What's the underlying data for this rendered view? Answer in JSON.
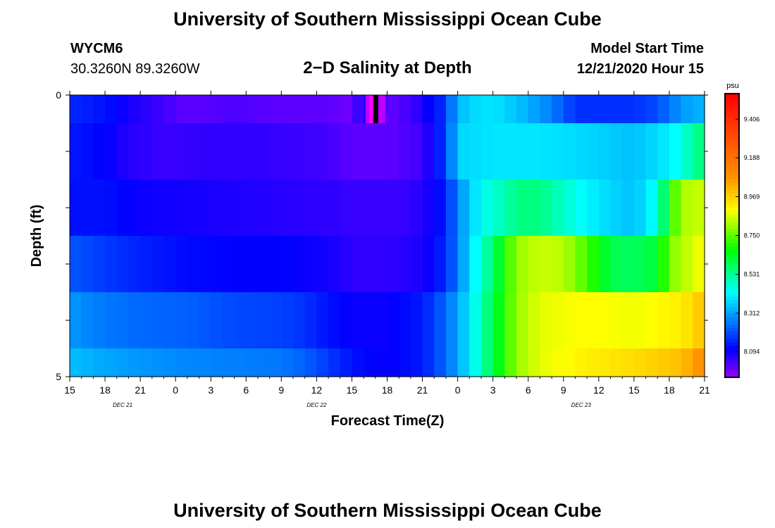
{
  "header": {
    "title": "University of Southern Mississippi Ocean Cube",
    "station": "WYCM6",
    "location": "30.3260N 89.3260W",
    "subtitle": "2−D Salinity at Depth",
    "model_start_label": "Model Start Time",
    "model_start_value": "12/21/2020 Hour 15"
  },
  "footer": {
    "title": "University of Southern Mississippi Ocean Cube"
  },
  "chart_data": {
    "type": "heatmap",
    "xlabel": "Forecast Time(Z)",
    "ylabel": "Depth (ft)",
    "x_ticks": [
      "15",
      "18",
      "21",
      "0",
      "3",
      "6",
      "9",
      "12",
      "15",
      "18",
      "21",
      "0",
      "3",
      "6",
      "9",
      "12",
      "15",
      "18",
      "21"
    ],
    "date_labels": [
      {
        "label": "DEC 21",
        "tick_index": 1.5
      },
      {
        "label": "DEC 22",
        "tick_index": 7
      },
      {
        "label": "DEC 23",
        "tick_index": 14.5
      }
    ],
    "y_ticks": [
      "0",
      "5"
    ],
    "ylim": [
      0,
      5
    ],
    "x_hours_from_start": [
      0,
      54
    ],
    "depth_rows_ft": [
      0.25,
      1.0,
      2.0,
      3.0,
      4.0,
      4.75
    ],
    "row_bounds_ft": [
      0,
      0.5,
      1.5,
      2.5,
      3.5,
      4.5,
      5
    ],
    "colorbar": {
      "unit": "psu",
      "min": 7.95,
      "max": 9.55,
      "ticks": [
        "9.406",
        "9.188",
        "8.969",
        "8.750",
        "8.531",
        "8.312",
        "8.094"
      ],
      "tick_values": [
        9.406,
        9.188,
        8.969,
        8.75,
        8.531,
        8.312,
        8.094
      ]
    },
    "now_marker_hour": 26.0,
    "series": [
      {
        "x": [
          0,
          3,
          5,
          8,
          10,
          14,
          18,
          22,
          24,
          25,
          26,
          27,
          29,
          30,
          31.5,
          32.5,
          33,
          34,
          36,
          39,
          41,
          43,
          45,
          46,
          48,
          50,
          51,
          53,
          54
        ],
        "values": [
          8.16,
          8.13,
          8.09,
          8.04,
          8.01,
          8.03,
          8.01,
          8.01,
          7.99,
          8.1,
          8.05,
          8.0,
          8.04,
          8.08,
          8.15,
          8.26,
          8.33,
          8.38,
          8.4,
          8.33,
          8.27,
          8.17,
          8.17,
          8.17,
          8.17,
          8.2,
          8.26,
          8.33,
          8.33
        ]
      },
      {
        "x": [
          0,
          3,
          5,
          8,
          12,
          16,
          22,
          24,
          27,
          30,
          31.5,
          32.5,
          33,
          36,
          40,
          44,
          48,
          51,
          52,
          53,
          54
        ],
        "values": [
          8.14,
          8.11,
          8.07,
          8.05,
          8.06,
          8.06,
          8.04,
          8.01,
          8.01,
          8.04,
          8.15,
          8.28,
          8.38,
          8.4,
          8.4,
          8.38,
          8.35,
          8.41,
          8.45,
          8.52,
          8.57
        ]
      },
      {
        "x": [
          0,
          3,
          6,
          10,
          14,
          18,
          22,
          25,
          28,
          30,
          32,
          33,
          35,
          37,
          38,
          40,
          42,
          44,
          46,
          48,
          50,
          51,
          52,
          54
        ],
        "values": [
          8.13,
          8.13,
          8.1,
          8.09,
          8.08,
          8.07,
          8.06,
          8.05,
          8.05,
          8.07,
          8.14,
          8.28,
          8.44,
          8.5,
          8.55,
          8.55,
          8.48,
          8.42,
          8.38,
          8.35,
          8.45,
          8.68,
          8.82,
          8.85
        ]
      },
      {
        "x": [
          0,
          3,
          6,
          10,
          14,
          18,
          22,
          24,
          27,
          30,
          32,
          34,
          36,
          38,
          40,
          42,
          44,
          46,
          48,
          50,
          51,
          54
        ],
        "values": [
          8.22,
          8.18,
          8.15,
          8.12,
          8.11,
          8.11,
          8.09,
          8.06,
          8.06,
          8.08,
          8.16,
          8.38,
          8.57,
          8.8,
          8.85,
          8.83,
          8.73,
          8.6,
          8.58,
          8.62,
          8.78,
          8.9
        ]
      },
      {
        "x": [
          0,
          3,
          6,
          10,
          14,
          18,
          20,
          22,
          24,
          27,
          30,
          32,
          34,
          36,
          38,
          40,
          44,
          48,
          52,
          54
        ],
        "values": [
          8.3,
          8.26,
          8.24,
          8.23,
          8.2,
          8.19,
          8.17,
          8.13,
          8.1,
          8.1,
          8.14,
          8.24,
          8.4,
          8.6,
          8.8,
          8.87,
          8.9,
          8.88,
          8.92,
          9.0
        ]
      },
      {
        "x": [
          0,
          3,
          6,
          10,
          14,
          18,
          20,
          22,
          24,
          27,
          30,
          32,
          34,
          36,
          38,
          40,
          44,
          48,
          52,
          54
        ],
        "values": [
          8.35,
          8.32,
          8.3,
          8.28,
          8.27,
          8.26,
          8.23,
          8.18,
          8.13,
          8.1,
          8.14,
          8.24,
          8.4,
          8.6,
          8.8,
          8.87,
          8.92,
          8.95,
          9.0,
          9.1
        ]
      }
    ]
  }
}
